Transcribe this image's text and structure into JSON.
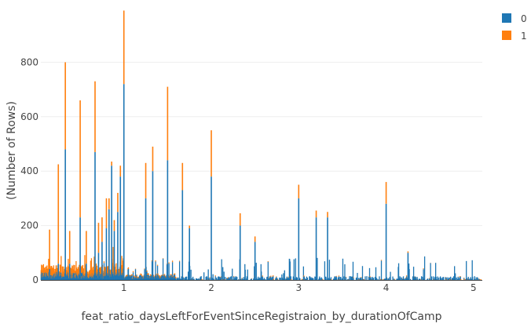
{
  "chart_data": {
    "type": "bar",
    "barmode": "stack",
    "xlabel": "feat_ratio_daysLeftForEventSinceRegistraion_by_durationOfCamp",
    "ylabel": "(Number of Rows)",
    "xlim": [
      0.05,
      5.1
    ],
    "ylim": [
      0,
      1000
    ],
    "xticks": [
      1,
      2,
      3,
      4,
      5
    ],
    "yticks": [
      0,
      200,
      400,
      600,
      800
    ],
    "grid": true,
    "legend_position": "top-right",
    "series": [
      {
        "name": "0",
        "color": "#1f77b4"
      },
      {
        "name": "1",
        "color": "#ff7f0e"
      }
    ],
    "spikes": [
      {
        "x": 0.15,
        "v0": 40,
        "v1": 145
      },
      {
        "x": 0.25,
        "v0": 60,
        "v1": 365
      },
      {
        "x": 0.33,
        "v0": 480,
        "v1": 320
      },
      {
        "x": 0.38,
        "v0": 60,
        "v1": 120
      },
      {
        "x": 0.5,
        "v0": 230,
        "v1": 430
      },
      {
        "x": 0.57,
        "v0": 60,
        "v1": 120
      },
      {
        "x": 0.67,
        "v0": 470,
        "v1": 260
      },
      {
        "x": 0.71,
        "v0": 100,
        "v1": 110
      },
      {
        "x": 0.75,
        "v0": 140,
        "v1": 90
      },
      {
        "x": 0.8,
        "v0": 190,
        "v1": 110
      },
      {
        "x": 0.83,
        "v0": 260,
        "v1": 40
      },
      {
        "x": 0.86,
        "v0": 420,
        "v1": 15
      },
      {
        "x": 0.89,
        "v0": 180,
        "v1": 40
      },
      {
        "x": 0.93,
        "v0": 250,
        "v1": 70
      },
      {
        "x": 0.96,
        "v0": 380,
        "v1": 40
      },
      {
        "x": 1.0,
        "v0": 720,
        "v1": 270
      },
      {
        "x": 1.25,
        "v0": 300,
        "v1": 130
      },
      {
        "x": 1.33,
        "v0": 400,
        "v1": 90
      },
      {
        "x": 1.5,
        "v0": 440,
        "v1": 270
      },
      {
        "x": 1.67,
        "v0": 330,
        "v1": 100
      },
      {
        "x": 1.75,
        "v0": 190,
        "v1": 10
      },
      {
        "x": 2.0,
        "v0": 380,
        "v1": 170
      },
      {
        "x": 2.33,
        "v0": 200,
        "v1": 45
      },
      {
        "x": 2.5,
        "v0": 140,
        "v1": 20
      },
      {
        "x": 3.0,
        "v0": 300,
        "v1": 50
      },
      {
        "x": 3.2,
        "v0": 230,
        "v1": 25
      },
      {
        "x": 3.33,
        "v0": 230,
        "v1": 20
      },
      {
        "x": 4.0,
        "v0": 280,
        "v1": 80
      },
      {
        "x": 4.25,
        "v0": 100,
        "v1": 5
      }
    ]
  }
}
